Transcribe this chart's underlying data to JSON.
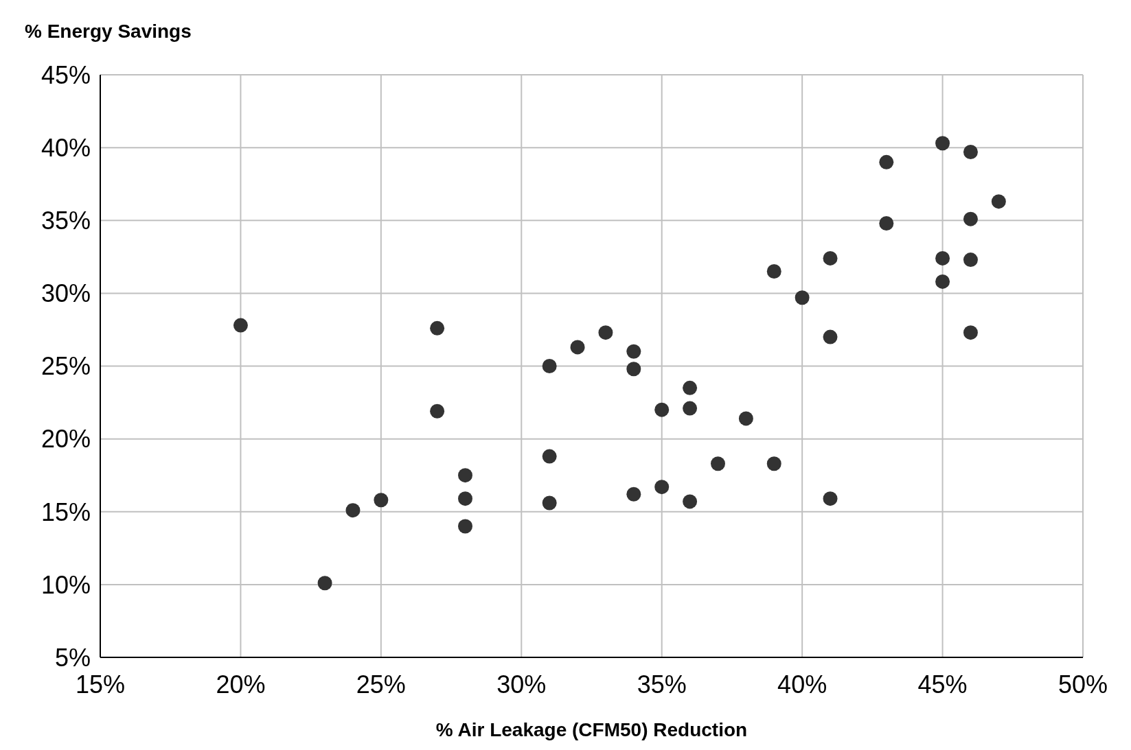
{
  "chart_data": {
    "type": "scatter",
    "ylabel": "% Energy Savings",
    "xlabel": "% Air Leakage (CFM50) Reduction",
    "x": [
      20,
      27,
      27,
      28,
      28,
      28,
      23,
      24,
      25,
      31,
      31,
      31,
      32,
      33,
      34,
      34,
      34,
      35,
      35,
      36,
      36,
      36,
      37,
      38,
      39,
      39,
      40,
      41,
      41,
      41,
      43,
      43,
      45,
      45,
      45,
      46,
      46,
      46,
      46,
      47
    ],
    "values": [
      27.8,
      27.6,
      21.9,
      17.5,
      15.9,
      14.0,
      10.1,
      15.1,
      15.8,
      25.0,
      18.8,
      15.6,
      26.3,
      27.3,
      26.0,
      24.8,
      16.2,
      22.0,
      16.7,
      23.5,
      22.1,
      15.7,
      18.3,
      21.4,
      31.5,
      18.3,
      29.7,
      32.4,
      27.0,
      15.9,
      39.0,
      34.8,
      40.3,
      32.4,
      30.8,
      39.7,
      35.1,
      32.3,
      27.3,
      36.3
    ],
    "color": "#333333",
    "marker": "circle",
    "grid": true,
    "xlim": [
      15,
      50
    ],
    "xticks": [
      {
        "value": 15,
        "label": "15%"
      },
      {
        "value": 20,
        "label": "20%"
      },
      {
        "value": 25,
        "label": "25%"
      },
      {
        "value": 30,
        "label": "30%"
      },
      {
        "value": 35,
        "label": "35%"
      },
      {
        "value": 40,
        "label": "40%"
      },
      {
        "value": 45,
        "label": "45%"
      },
      {
        "value": 50,
        "label": "50%"
      }
    ],
    "ylim": [
      5,
      45
    ],
    "yticks": [
      {
        "value": 5,
        "label": "5%"
      },
      {
        "value": 10,
        "label": "10%"
      },
      {
        "value": 15,
        "label": "15%"
      },
      {
        "value": 20,
        "label": "20%"
      },
      {
        "value": 25,
        "label": "25%"
      },
      {
        "value": 30,
        "label": "30%"
      },
      {
        "value": 35,
        "label": "35%"
      },
      {
        "value": 40,
        "label": "40%"
      },
      {
        "value": 45,
        "label": "45%"
      }
    ]
  }
}
